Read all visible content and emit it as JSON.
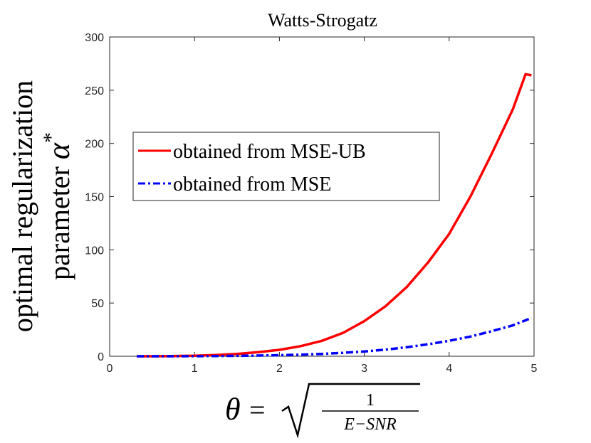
{
  "chart_data": {
    "type": "line",
    "title": "Watts-Strogatz",
    "ylabel_line1": "optimal regularization",
    "ylabel_line2": "parameter",
    "ylabel_symbol": "α",
    "ylabel_sup": "*",
    "xlabel_lhs": "θ",
    "xlabel_eq": "=",
    "xlabel_num": "1",
    "xlabel_den": "E−SNR",
    "xlim": [
      0,
      5
    ],
    "ylim": [
      0,
      300
    ],
    "xticks": [
      "0",
      "1",
      "2",
      "3",
      "4",
      "5"
    ],
    "yticks": [
      "0",
      "50",
      "100",
      "150",
      "200",
      "250",
      "300"
    ],
    "grid": false,
    "legend_position": "center-left",
    "series": [
      {
        "name": "obtained from MSE-UB",
        "color": "#ff0000",
        "style": "solid",
        "x": [
          0.32,
          0.5,
          0.75,
          1.0,
          1.25,
          1.5,
          1.75,
          2.0,
          2.25,
          2.5,
          2.75,
          3.0,
          3.25,
          3.5,
          3.75,
          4.0,
          4.25,
          4.5,
          4.75,
          4.9,
          4.97
        ],
        "y": [
          0,
          0,
          0.2,
          0.5,
          1.2,
          2.2,
          3.8,
          6,
          9.5,
          14.5,
          22,
          33,
          47,
          65,
          88,
          115,
          150,
          190,
          232,
          265,
          264
        ]
      },
      {
        "name": "obtained from MSE",
        "color": "#0000ff",
        "style": "dashdot",
        "x": [
          0.32,
          0.5,
          0.75,
          1.0,
          1.25,
          1.5,
          1.75,
          2.0,
          2.25,
          2.5,
          2.75,
          3.0,
          3.25,
          3.5,
          3.75,
          4.0,
          4.25,
          4.5,
          4.75,
          4.97
        ],
        "y": [
          0,
          0,
          0,
          0.1,
          0.2,
          0.4,
          0.7,
          1.0,
          1.5,
          2.2,
          3.2,
          4.5,
          6.2,
          8.5,
          11.2,
          14.5,
          18.5,
          23.5,
          29,
          36
        ]
      }
    ]
  }
}
